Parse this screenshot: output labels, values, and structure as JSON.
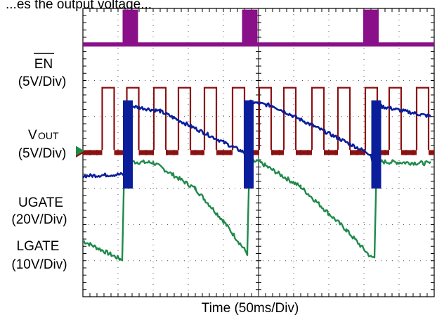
{
  "header_fragment": "...es the output voltage...",
  "chart_data": {
    "type": "line",
    "title": "",
    "xlabel": "Time (50ms/Div)",
    "x_divisions": 10,
    "y_divisions": 8,
    "grid": true,
    "channels": [
      {
        "name_main": "EN",
        "name_sub": "",
        "overline": true,
        "scale": "(5V/Div)",
        "color": "#8B1010",
        "low_div": 4.0,
        "high_div": 5.8,
        "pulse_starts_div": [
          0.55,
          1.25,
          2.02,
          2.72,
          3.46,
          4.26,
          5.02,
          5.72,
          6.52,
          7.26,
          8.04,
          8.72,
          9.5
        ],
        "pulse_width_div": 0.34,
        "note": "periodic enable pulses, ~14 pulses over record"
      },
      {
        "name_main": "V",
        "name_sub": "OUT",
        "overline": false,
        "scale": "(5V/Div)",
        "color": "#1E8A4A",
        "ramp_points": [
          [
            0.0,
            1.55
          ],
          [
            1.05,
            1.05
          ],
          [
            1.12,
            1.05
          ],
          [
            1.18,
            3.75
          ],
          [
            2.0,
            3.72
          ],
          [
            3.2,
            3.0
          ],
          [
            4.0,
            2.1
          ],
          [
            4.68,
            1.2
          ],
          [
            4.74,
            3.75
          ],
          [
            5.0,
            3.75
          ],
          [
            6.2,
            3.05
          ],
          [
            7.5,
            1.85
          ],
          [
            8.2,
            1.1
          ],
          [
            8.3,
            1.1
          ],
          [
            8.36,
            3.75
          ],
          [
            9.9,
            3.7
          ]
        ]
      },
      {
        "name_main": "UGATE",
        "name_sub": "",
        "overline": false,
        "scale": "(20V/Div)",
        "color": "#0A1E9C",
        "ramp_points": [
          [
            0.0,
            3.35
          ],
          [
            1.2,
            3.4
          ],
          [
            1.32,
            5.3
          ],
          [
            2.2,
            5.15
          ],
          [
            4.6,
            4.0
          ],
          [
            4.68,
            3.35
          ],
          [
            4.75,
            5.4
          ],
          [
            5.4,
            5.3
          ],
          [
            8.2,
            3.95
          ],
          [
            8.3,
            3.35
          ],
          [
            8.4,
            5.3
          ],
          [
            9.9,
            5.0
          ]
        ],
        "bursts_div": [
          1.28,
          4.72,
          8.35
        ]
      },
      {
        "name_main": "LGATE",
        "name_sub": "",
        "overline": false,
        "scale": "(10V/Div)",
        "color": "#8A108A",
        "baseline_div": 7.0,
        "pulses_div": [
          [
            1.15,
            1.55
          ],
          [
            4.55,
            4.95
          ],
          [
            8.0,
            8.4
          ]
        ],
        "pulse_height_div": 0.95
      }
    ]
  },
  "labels": {
    "en": "EN",
    "en_scale": "(5V/Div)",
    "vout_main": "V",
    "vout_sub": "OUT",
    "vout_scale": "(5V/Div)",
    "ugate": "UGATE",
    "ugate_scale": "(20V/Div)",
    "lgate": "LGATE",
    "lgate_scale": "(10V/Div)",
    "time": "Time (50ms/Div)"
  }
}
